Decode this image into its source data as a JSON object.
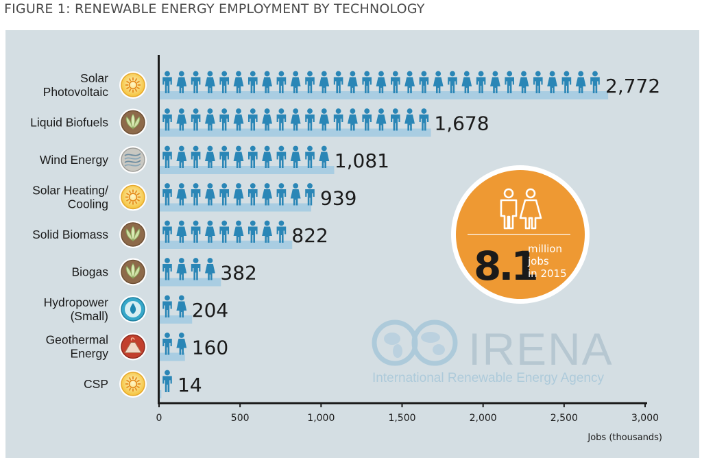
{
  "figure_label": "FIGURE 1:",
  "figure_title": "RENEWABLE ENERGY EMPLOYMENT BY TECHNOLOGY",
  "chart_data": {
    "type": "bar",
    "orientation": "horizontal",
    "categories": [
      {
        "lines": [
          "Solar",
          "Photovoltaic"
        ],
        "icon": "sun-icon"
      },
      {
        "lines": [
          "Liquid Biofuels"
        ],
        "icon": "leaf-icon"
      },
      {
        "lines": [
          "Wind Energy"
        ],
        "icon": "wind-icon"
      },
      {
        "lines": [
          "Solar Heating/",
          "Cooling"
        ],
        "icon": "sun-icon"
      },
      {
        "lines": [
          "Solid Biomass"
        ],
        "icon": "leaf-icon"
      },
      {
        "lines": [
          "Biogas"
        ],
        "icon": "leaf-icon"
      },
      {
        "lines": [
          "Hydropower",
          "(Small)"
        ],
        "icon": "water-drop-icon"
      },
      {
        "lines": [
          "Geothermal",
          "Energy"
        ],
        "icon": "volcano-icon"
      },
      {
        "lines": [
          "CSP"
        ],
        "icon": "sun-icon"
      }
    ],
    "values": [
      2772,
      1678,
      1081,
      939,
      822,
      382,
      204,
      160,
      14
    ],
    "value_labels": [
      "2,772",
      "1,678",
      "1,081",
      "939",
      "822",
      "382",
      "204",
      "160",
      "14"
    ],
    "xlim": [
      0,
      3000
    ],
    "xticks": [
      0,
      500,
      1000,
      1500,
      2000,
      2500,
      3000
    ],
    "xtick_labels": [
      "0",
      "500",
      "1,000",
      "1,500",
      "2,000",
      "2,500",
      "3,000"
    ],
    "xlabel": "Jobs (thousands)",
    "ylabel": "",
    "grid": false,
    "colors": {
      "panel": "#d4dee3",
      "figure": "#2a86b6",
      "bar_shadow": "#a9cde2",
      "badge": "#ee9933",
      "axis": "#1a1a1a",
      "text": "#1a1a1a"
    }
  },
  "callout": {
    "value": "8.1",
    "line1": "million",
    "line2": "jobs",
    "line3": "in 2015"
  },
  "watermark": {
    "name": "IRENA",
    "subtitle": "International Renewable Energy Agency"
  }
}
